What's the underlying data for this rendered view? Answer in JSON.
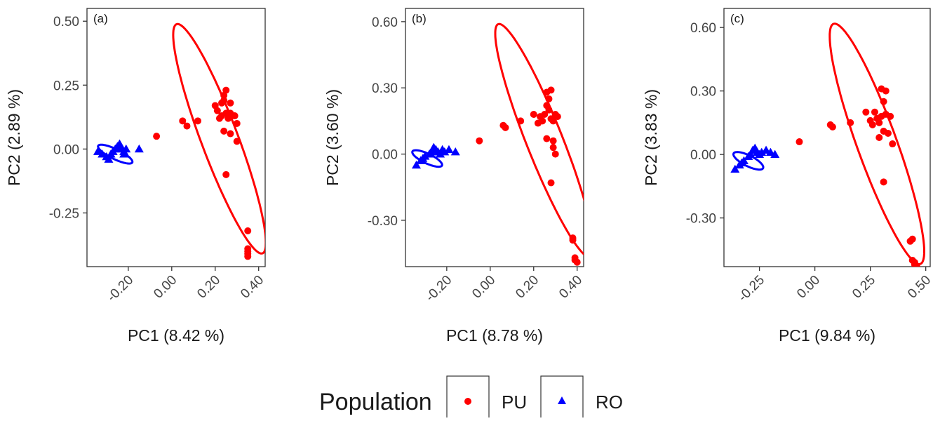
{
  "legend": {
    "title": "Population",
    "entries": [
      {
        "label": "PU",
        "color": "#ff0000",
        "shape": "circle"
      },
      {
        "label": "RO",
        "color": "#0000ff",
        "shape": "triangle"
      }
    ]
  },
  "chart_data": [
    {
      "type": "scatter",
      "panel_label": "(a)",
      "xlabel": "PC1 (8.42 %)",
      "ylabel": "PC2 (2.89 %)",
      "xlim": [
        -0.39,
        0.43
      ],
      "ylim": [
        -0.46,
        0.55
      ],
      "xticks": [
        -0.2,
        0.0,
        0.2,
        0.4
      ],
      "xtick_labels": [
        "-0.20",
        "0.00",
        "0.20",
        "0.40"
      ],
      "yticks": [
        0.5,
        0.25,
        0.0,
        -0.25
      ],
      "ytick_labels": [
        "0.50",
        "0.25",
        "0.00",
        "-0.25"
      ],
      "grid": false,
      "series": [
        {
          "name": "PU",
          "color": "#ff0000",
          "marker": "circle",
          "points": [
            [
              -0.07,
              0.05
            ],
            [
              0.05,
              0.11
            ],
            [
              0.07,
              0.09
            ],
            [
              0.12,
              0.11
            ],
            [
              0.2,
              0.17
            ],
            [
              0.21,
              0.15
            ],
            [
              0.22,
              0.12
            ],
            [
              0.23,
              0.18
            ],
            [
              0.23,
              0.13
            ],
            [
              0.24,
              0.21
            ],
            [
              0.24,
              0.19
            ],
            [
              0.25,
              0.23
            ],
            [
              0.25,
              0.14
            ],
            [
              0.26,
              0.12
            ],
            [
              0.27,
              0.14
            ],
            [
              0.27,
              0.18
            ],
            [
              0.28,
              0.13
            ],
            [
              0.29,
              0.13
            ],
            [
              0.3,
              0.1
            ],
            [
              0.24,
              0.07
            ],
            [
              0.27,
              0.06
            ],
            [
              0.3,
              0.03
            ],
            [
              0.25,
              -0.1
            ],
            [
              0.35,
              -0.32
            ],
            [
              0.35,
              -0.39
            ],
            [
              0.35,
              -0.4
            ],
            [
              0.35,
              -0.41
            ],
            [
              0.35,
              -0.42
            ]
          ],
          "ellipse": {
            "center": [
              0.22,
              0.04
            ],
            "semi_major": 0.49,
            "semi_minor": 0.083,
            "angle_deg": -66
          }
        },
        {
          "name": "RO",
          "color": "#0000ff",
          "marker": "triangle",
          "points": [
            [
              -0.34,
              -0.01
            ],
            [
              -0.32,
              -0.02
            ],
            [
              -0.3,
              -0.03
            ],
            [
              -0.29,
              -0.04
            ],
            [
              -0.28,
              -0.02
            ],
            [
              -0.27,
              -0.01
            ],
            [
              -0.26,
              0.0
            ],
            [
              -0.25,
              0.01
            ],
            [
              -0.24,
              0.02
            ],
            [
              -0.23,
              0.0
            ],
            [
              -0.22,
              -0.02
            ],
            [
              -0.21,
              0.0
            ],
            [
              -0.22,
              -0.01
            ],
            [
              -0.15,
              0.0
            ]
          ],
          "ellipse": {
            "center": [
              -0.26,
              -0.02
            ],
            "semi_major": 0.085,
            "semi_minor": 0.02,
            "angle_deg": -22
          }
        }
      ]
    },
    {
      "type": "scatter",
      "panel_label": "(b)",
      "xlabel": "PC1 (8.78 %)",
      "ylabel": "PC2 (3.60 %)",
      "xlim": [
        -0.39,
        0.43
      ],
      "ylim": [
        -0.51,
        0.66
      ],
      "xticks": [
        -0.2,
        0.0,
        0.2,
        0.4
      ],
      "xtick_labels": [
        "-0.20",
        "0.00",
        "0.20",
        "0.40"
      ],
      "yticks": [
        0.6,
        0.3,
        0.0,
        -0.3
      ],
      "ytick_labels": [
        "0.60",
        "0.30",
        "0.00",
        "-0.30"
      ],
      "grid": false,
      "series": [
        {
          "name": "PU",
          "color": "#ff0000",
          "marker": "circle",
          "points": [
            [
              -0.05,
              0.06
            ],
            [
              0.06,
              0.13
            ],
            [
              0.07,
              0.12
            ],
            [
              0.14,
              0.15
            ],
            [
              0.2,
              0.18
            ],
            [
              0.22,
              0.14
            ],
            [
              0.23,
              0.17
            ],
            [
              0.24,
              0.15
            ],
            [
              0.25,
              0.18
            ],
            [
              0.26,
              0.22
            ],
            [
              0.26,
              0.28
            ],
            [
              0.27,
              0.25
            ],
            [
              0.28,
              0.29
            ],
            [
              0.28,
              0.16
            ],
            [
              0.29,
              0.15
            ],
            [
              0.3,
              0.18
            ],
            [
              0.27,
              0.2
            ],
            [
              0.31,
              0.17
            ],
            [
              0.26,
              0.07
            ],
            [
              0.29,
              0.06
            ],
            [
              0.29,
              0.03
            ],
            [
              0.3,
              0.0
            ],
            [
              0.28,
              -0.13
            ],
            [
              0.38,
              -0.38
            ],
            [
              0.38,
              -0.39
            ],
            [
              0.39,
              -0.47
            ],
            [
              0.39,
              -0.48
            ],
            [
              0.4,
              -0.49
            ]
          ],
          "ellipse": {
            "center": [
              0.25,
              0.06
            ],
            "semi_major": 0.57,
            "semi_minor": 0.083,
            "angle_deg": -68
          }
        },
        {
          "name": "RO",
          "color": "#0000ff",
          "marker": "triangle",
          "points": [
            [
              -0.34,
              -0.05
            ],
            [
              -0.32,
              -0.03
            ],
            [
              -0.31,
              -0.02
            ],
            [
              -0.3,
              -0.01
            ],
            [
              -0.28,
              0.0
            ],
            [
              -0.27,
              0.01
            ],
            [
              -0.26,
              0.03
            ],
            [
              -0.25,
              0.02
            ],
            [
              -0.24,
              0.01
            ],
            [
              -0.23,
              0.0
            ],
            [
              -0.22,
              0.02
            ],
            [
              -0.21,
              0.01
            ],
            [
              -0.19,
              0.02
            ],
            [
              -0.16,
              0.01
            ]
          ],
          "ellipse": {
            "center": [
              -0.29,
              -0.02
            ],
            "semi_major": 0.075,
            "semi_minor": 0.022,
            "angle_deg": -25
          }
        }
      ]
    },
    {
      "type": "scatter",
      "panel_label": "(c)",
      "xlabel": "PC1 (9.84 %)",
      "ylabel": "PC2 (3.83 %)",
      "xlim": [
        -0.41,
        0.52
      ],
      "ylim": [
        -0.53,
        0.69
      ],
      "xticks": [
        -0.25,
        0.0,
        0.25,
        0.5
      ],
      "xtick_labels": [
        "-0.25",
        "0.00",
        "0.25",
        "0.50"
      ],
      "yticks": [
        0.6,
        0.3,
        0.0,
        -0.3
      ],
      "ytick_labels": [
        "0.60",
        "0.30",
        "0.00",
        "-0.30"
      ],
      "grid": false,
      "series": [
        {
          "name": "PU",
          "color": "#ff0000",
          "marker": "circle",
          "points": [
            [
              -0.07,
              0.06
            ],
            [
              0.07,
              0.14
            ],
            [
              0.08,
              0.13
            ],
            [
              0.16,
              0.15
            ],
            [
              0.23,
              0.2
            ],
            [
              0.25,
              0.16
            ],
            [
              0.26,
              0.14
            ],
            [
              0.27,
              0.2
            ],
            [
              0.28,
              0.17
            ],
            [
              0.29,
              0.15
            ],
            [
              0.3,
              0.31
            ],
            [
              0.31,
              0.25
            ],
            [
              0.32,
              0.3
            ],
            [
              0.3,
              0.18
            ],
            [
              0.32,
              0.19
            ],
            [
              0.34,
              0.18
            ],
            [
              0.29,
              0.08
            ],
            [
              0.31,
              0.11
            ],
            [
              0.33,
              0.1
            ],
            [
              0.35,
              0.05
            ],
            [
              0.31,
              -0.13
            ],
            [
              0.43,
              -0.41
            ],
            [
              0.44,
              -0.4
            ],
            [
              0.44,
              -0.5
            ],
            [
              0.45,
              -0.51
            ],
            [
              0.45,
              -0.52
            ],
            [
              0.46,
              -0.53
            ]
          ],
          "ellipse": {
            "center": [
              0.28,
              0.05
            ],
            "semi_major": 0.6,
            "semi_minor": 0.09,
            "angle_deg": -71
          }
        },
        {
          "name": "RO",
          "color": "#0000ff",
          "marker": "triangle",
          "points": [
            [
              -0.36,
              -0.07
            ],
            [
              -0.34,
              -0.05
            ],
            [
              -0.33,
              -0.04
            ],
            [
              -0.32,
              -0.03
            ],
            [
              -0.3,
              -0.01
            ],
            [
              -0.29,
              0.0
            ],
            [
              -0.28,
              0.02
            ],
            [
              -0.27,
              0.03
            ],
            [
              -0.26,
              0.01
            ],
            [
              -0.25,
              0.0
            ],
            [
              -0.24,
              0.01
            ],
            [
              -0.22,
              0.02
            ],
            [
              -0.2,
              0.01
            ],
            [
              -0.18,
              0.0
            ]
          ],
          "ellipse": {
            "center": [
              -0.3,
              -0.03
            ],
            "semi_major": 0.075,
            "semi_minor": 0.025,
            "angle_deg": -28
          }
        }
      ]
    }
  ]
}
